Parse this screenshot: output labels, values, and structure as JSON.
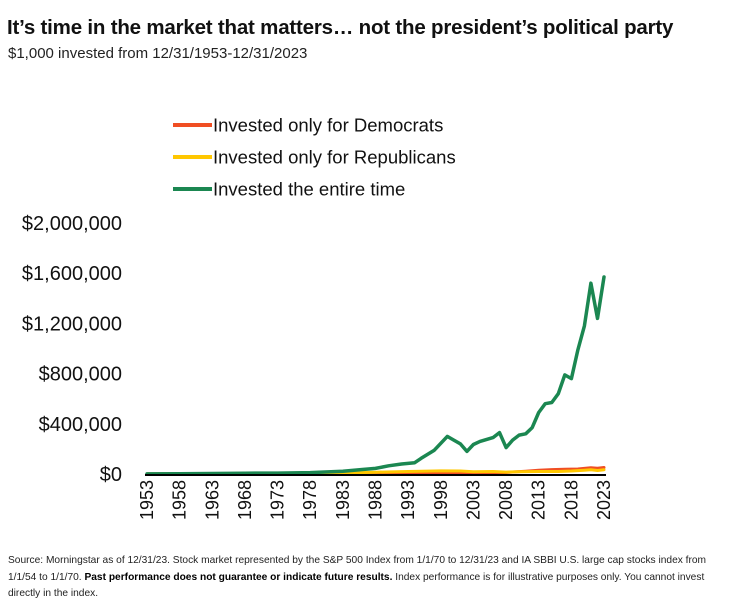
{
  "header": {
    "title": "It’s time in the market that matters… not the president’s political party",
    "subtitle": "$1,000 invested from 12/31/1953-12/31/2023"
  },
  "footer": {
    "source_prefix": "Source: Morningstar as of 12/31/23. Stock market represented by the S&P 500 Index from 1/1/70 to 12/31/23 and IA SBBI U.S. large cap stocks index from 1/1/54 to 1/1/70. ",
    "disclaimer_bold": "Past performance does not guarantee or indicate future results.",
    "source_suffix": " Index performance is for illustrative purposes only. You cannot invest directly in the index."
  },
  "chart_data": {
    "type": "line",
    "title": "It’s time in the market that matters… not the president’s political party",
    "subtitle": "$1,000 invested from 12/31/1953-12/31/2023",
    "xlabel": "",
    "ylabel": "",
    "ylim": [
      0,
      2000000
    ],
    "xlim": [
      1953,
      2023
    ],
    "yticks": [
      0,
      400000,
      800000,
      1200000,
      1600000,
      2000000
    ],
    "ytick_labels": [
      "$0",
      "$400,000",
      "$800,000",
      "$1,200,000",
      "$1,600,000",
      "$2,000,000"
    ],
    "xticks": [
      "1953",
      "1958",
      "1963",
      "1968",
      "1973",
      "1978",
      "1983",
      "1988",
      "1993",
      "1998",
      "2003",
      "2008",
      "2013",
      "2018",
      "2023"
    ],
    "grid": false,
    "legend_position": "top",
    "series": [
      {
        "name": "Invested only for Democrats",
        "color": "#f04e23",
        "x": [
          1953,
          1958,
          1963,
          1968,
          1973,
          1978,
          1983,
          1988,
          1993,
          1998,
          2003,
          2008,
          2009,
          2011,
          2013,
          2015,
          2017,
          2019,
          2021,
          2022,
          2023
        ],
        "values": [
          1000,
          1200,
          1500,
          2000,
          2600,
          3200,
          4200,
          5000,
          6500,
          10000,
          12000,
          12000,
          16000,
          22000,
          30000,
          35000,
          38000,
          40000,
          50000,
          46000,
          52000
        ]
      },
      {
        "name": "Invested only for Republicans",
        "color": "#ffc700",
        "x": [
          1953,
          1958,
          1963,
          1968,
          1973,
          1978,
          1983,
          1988,
          1993,
          1998,
          2001,
          2003,
          2006,
          2008,
          2010,
          2013,
          2016,
          2018,
          2020,
          2021,
          2022,
          2023
        ],
        "values": [
          1000,
          2000,
          3000,
          4500,
          5000,
          6000,
          8000,
          14000,
          20000,
          25000,
          24000,
          18000,
          20000,
          15000,
          18000,
          20000,
          20000,
          24000,
          30000,
          34000,
          28000,
          34000
        ]
      },
      {
        "name": "Invested the entire time",
        "color": "#1b8751",
        "x": [
          1953,
          1958,
          1963,
          1968,
          1973,
          1978,
          1983,
          1986,
          1988,
          1990,
          1992,
          1994,
          1995,
          1997,
          1999,
          2000,
          2001,
          2002,
          2003,
          2004,
          2006,
          2007,
          2008,
          2009,
          2010,
          2011,
          2012,
          2013,
          2014,
          2015,
          2016,
          2017,
          2018,
          2019,
          2020,
          2021,
          2022,
          2023
        ],
        "values": [
          1000,
          2500,
          4000,
          6500,
          7000,
          11000,
          22000,
          36000,
          45000,
          65000,
          80000,
          90000,
          125000,
          190000,
          300000,
          270000,
          240000,
          180000,
          235000,
          260000,
          290000,
          330000,
          210000,
          270000,
          310000,
          320000,
          370000,
          490000,
          560000,
          570000,
          640000,
          790000,
          760000,
          990000,
          1180000,
          1520000,
          1240000,
          1570000
        ]
      }
    ]
  }
}
